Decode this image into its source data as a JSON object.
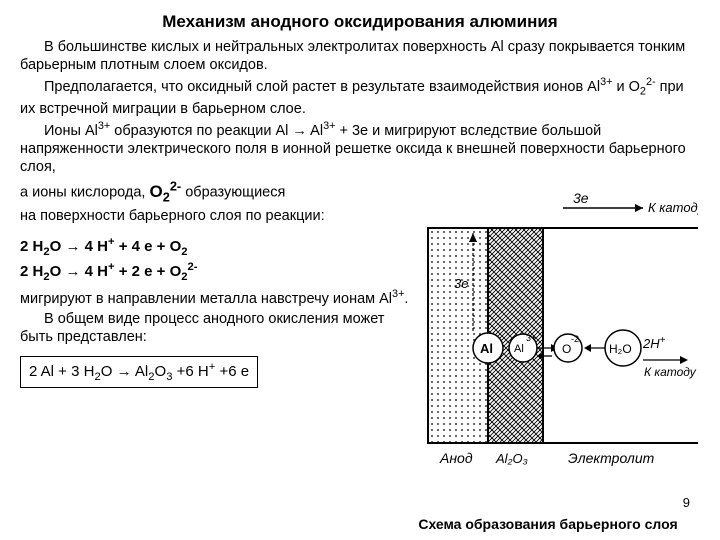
{
  "title": "Механизм анодного оксидирования алюминия",
  "p1": "В большинстве кислых и нейтральных электролитах поверхность Al сразу покрывается тонким барьерным плотным слоем оксидов.",
  "p2": "Предполагается, что оксидный слой растет в результате взаимодействия ионов Al3+ и O22- при их встречной миграции в барьерном слое.",
  "p3": "Ионы Al3+ образуются по реакции Al → Al3+ + 3e и мигрируют вследствие большой напряженности электрического поля в ионной решетке оксида к внешней поверхности барьерного слоя,",
  "p4a": "а ионы кислорода, ",
  "p4_o": "O",
  "p4_sub": "2",
  "p4_sup": "2-",
  "p4b": " образующиеся",
  "p5": "на поверхности  барьерного слоя по реакции:",
  "r1": "2 H2O → 4 H+ + 4 e + O2",
  "r2": "2 H2O → 4 H+ + 2 e + O22-",
  "p6": "мигрируют в направлении металла навстречу ионам Al3+.",
  "p7": "В общем виде процесс анодного окисления может быть представлен:",
  "boxed": "2 Al + 3 H2O → Al2O3 +6 H+ +6 e",
  "caption": "Схема образования барьерного слоя",
  "pagenum": "9",
  "diagram": {
    "top_cathode": "К катоду",
    "bottom_cathode": "К катоду",
    "three_e": "3e",
    "al_label": "Al",
    "al3_label": "Al",
    "al3_sup": "3+",
    "o2_label": "O",
    "o2_sup": "-2",
    "h2o": "H₂O",
    "two_h": "2H",
    "two_h_sup": "+",
    "anod": "Анод",
    "al2o3": "Al₂O₃",
    "electrolyte": "Электролит",
    "stroke": "#000000",
    "hatch": "#000000"
  }
}
